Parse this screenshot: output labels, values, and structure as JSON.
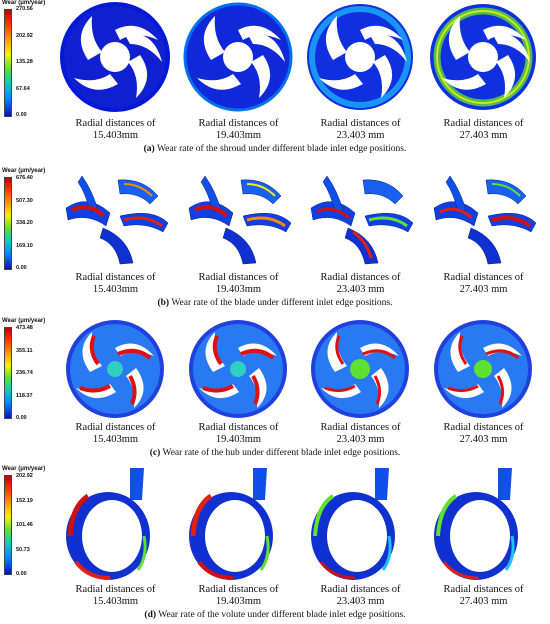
{
  "positions": [
    {
      "line1": "Radial distances of",
      "line2": "15.403mm"
    },
    {
      "line1": "Radial distances of",
      "line2": "19.403mm"
    },
    {
      "line1": "Radial distances of",
      "line2": "23.403 mm"
    },
    {
      "line1": "Radial distances of",
      "line2": "27.403 mm"
    }
  ],
  "panels": [
    {
      "id": "a",
      "legend_title": "Wear (μm/year)",
      "ticks": [
        "270.56",
        "202.92",
        "135.28",
        "67.64",
        "0.00"
      ],
      "captions": [
        {
          "line1": "Radial distances of",
          "line2": "15.403mm"
        },
        {
          "line1": "Radial distances of",
          "line2": "19.403mm"
        },
        {
          "line1": "Radial distances of",
          "line2": "23.403 mm"
        },
        {
          "line1": "Radial distances of",
          "line2": "27.403 mm"
        }
      ],
      "label": "(a)",
      "caption": "Wear rate of the shroud under different blade inlet edge positions."
    },
    {
      "id": "b",
      "legend_title": "Wear (μm/year)",
      "ticks": [
        "676.40",
        "507.30",
        "338.20",
        "169.10",
        "0.00"
      ],
      "captions": [
        {
          "line1": "Radial distances of",
          "line2": "15.403mm"
        },
        {
          "line1": "Radial distances of",
          "line2": "19.403mm"
        },
        {
          "line1": "Radial distances of",
          "line2": "23.403 mm"
        },
        {
          "line1": "Radial distances of",
          "line2": "27.403 mm"
        }
      ],
      "label": "(b)",
      "caption": "Wear rate of the blade under different inlet edge positions."
    },
    {
      "id": "c",
      "legend_title": "Wear (μm/year)",
      "ticks": [
        "473.48",
        "355.11",
        "236.74",
        "118.37",
        "0.00"
      ],
      "captions": [
        {
          "line1": "Radial distances of",
          "line2": "15.403mm"
        },
        {
          "line1": "Radial distances of",
          "line2": "19.403mm"
        },
        {
          "line1": "Radial distances of",
          "line2": "23.403 mm"
        },
        {
          "line1": "Radial distances of",
          "line2": "27.403 mm"
        }
      ],
      "label": "(c)",
      "caption": "Wear rate of the hub under different blade inlet edge positions."
    },
    {
      "id": "d",
      "legend_title": "Wear (μm/year)",
      "ticks": [
        "202.92",
        "152.19",
        "101.46",
        "50.73",
        "0.00"
      ],
      "captions": [
        {
          "line1": "Radial distances of",
          "line2": "15.403mm"
        },
        {
          "line1": "Radial distances of",
          "line2": "19.403mm"
        },
        {
          "line1": "Radial distances of",
          "line2": "23.403 mm"
        },
        {
          "line1": "Radial distances of",
          "line2": "27.403 mm"
        }
      ],
      "label": "(d)",
      "caption": "Wear rate of the volute under different blade inlet edge positions."
    }
  ],
  "colors": {
    "low": "#0010c0",
    "mid_low": "#0090ff",
    "mid": "#60e030",
    "mid_high": "#f2f200",
    "high": "#c00000"
  }
}
